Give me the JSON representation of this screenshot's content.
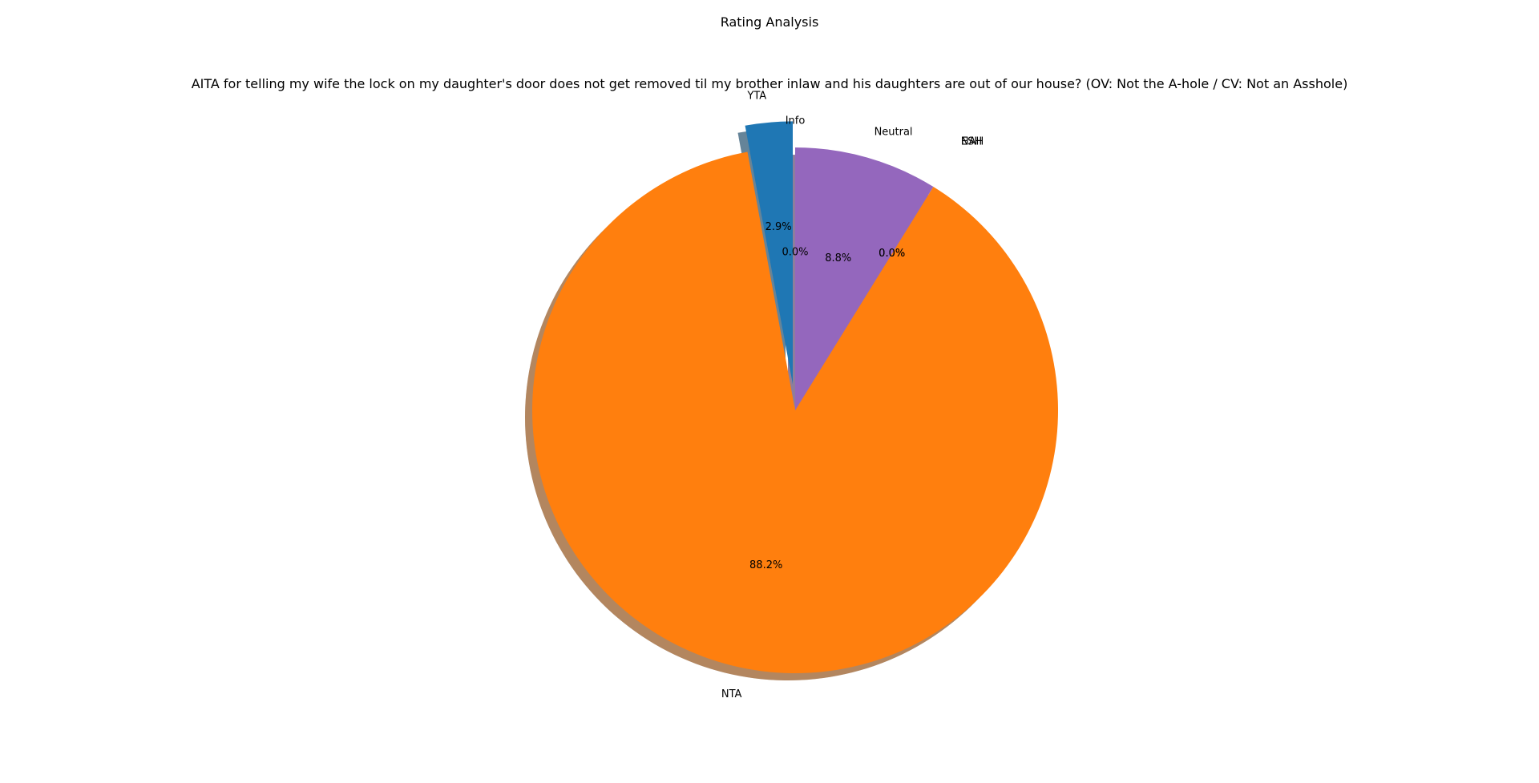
{
  "figure": {
    "suptitle": "Rating Analysis"
  },
  "chart_data": {
    "type": "pie",
    "title": "AITA for telling my wife the lock on my daughter's door does not get removed til my brother inlaw and his daughters are out of our house? (OV: Not the A-hole / CV: Not an Asshole)",
    "start_angle_deg": 90,
    "counterclock": true,
    "shadow": true,
    "slices": [
      {
        "label": "YTA",
        "value": 2.9,
        "pct_label": "2.9%",
        "color": "#1f77b4",
        "explode": 0.1
      },
      {
        "label": "NTA",
        "value": 88.2,
        "pct_label": "88.2%",
        "color": "#ff7f0e",
        "explode": 0
      },
      {
        "label": "ESH",
        "value": 0.0,
        "pct_label": "0.0%",
        "color": "#2ca02c",
        "explode": 0.1
      },
      {
        "label": "NAH",
        "value": 0.0,
        "pct_label": "0.0%",
        "color": "#d62728",
        "explode": 0.1
      },
      {
        "label": "Neutral",
        "value": 8.8,
        "pct_label": "8.8%",
        "color": "#9467bd",
        "explode": 0
      },
      {
        "label": "Info",
        "value": 0.0,
        "pct_label": "0.0%",
        "color": "#8c564b",
        "explode": 0
      }
    ]
  }
}
